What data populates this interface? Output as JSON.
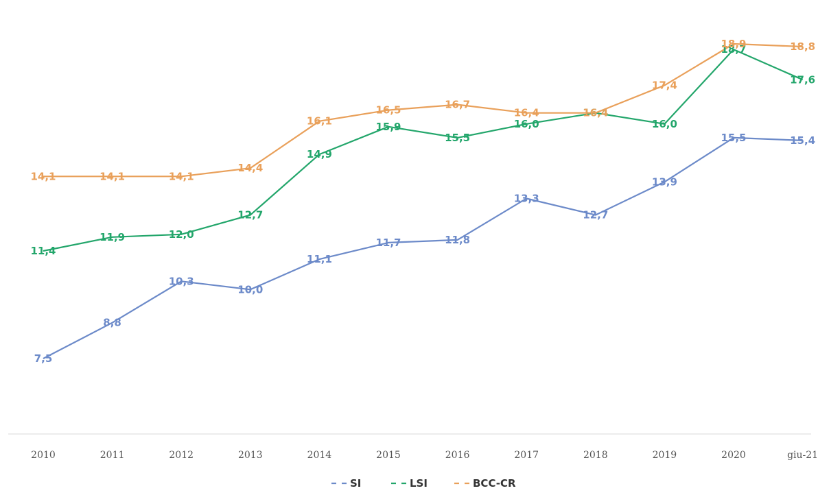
{
  "chart_data": {
    "type": "line",
    "title": "",
    "xlabel": "",
    "ylabel": "",
    "categories": [
      "2010",
      "2011",
      "2012",
      "2013",
      "2014",
      "2015",
      "2016",
      "2017",
      "2018",
      "2019",
      "2020",
      "giu-21"
    ],
    "series": [
      {
        "name": "SI",
        "color": "#6c8ac9",
        "values": [
          7.5,
          8.8,
          10.3,
          10.0,
          11.1,
          11.7,
          11.8,
          13.3,
          12.7,
          13.9,
          15.5,
          15.4
        ],
        "labels": [
          "7,5",
          "8,8",
          "10,3",
          "10,0",
          "11,1",
          "11,7",
          "11,8",
          "13,3",
          "12,7",
          "13,9",
          "15,5",
          "15,4"
        ]
      },
      {
        "name": "LSI",
        "color": "#23a66b",
        "values": [
          11.4,
          11.9,
          12.0,
          12.7,
          14.9,
          15.9,
          15.5,
          16.0,
          16.4,
          16.0,
          18.7,
          17.6
        ],
        "labels": [
          "11,4",
          "11,9",
          "12,0",
          "12,7",
          "14,9",
          "15,9",
          "15,5",
          "16,0",
          "16,4",
          "16,0",
          "18,7",
          "17,6"
        ]
      },
      {
        "name": "BCC-CR",
        "color": "#e9a05a",
        "values": [
          14.1,
          14.1,
          14.1,
          14.4,
          16.1,
          16.5,
          16.7,
          16.4,
          16.4,
          17.4,
          18.9,
          18.8
        ],
        "labels": [
          "14,1",
          "14,1",
          "14,1",
          "14,4",
          "16,1",
          "16,5",
          "16,7",
          "16,4",
          "16,4",
          "17,4",
          "18,9",
          "18,8"
        ]
      }
    ],
    "legend_position": "bottom",
    "grid": false
  },
  "colors": {
    "axis": "#d9d9d9",
    "tick_text": "#555555"
  }
}
